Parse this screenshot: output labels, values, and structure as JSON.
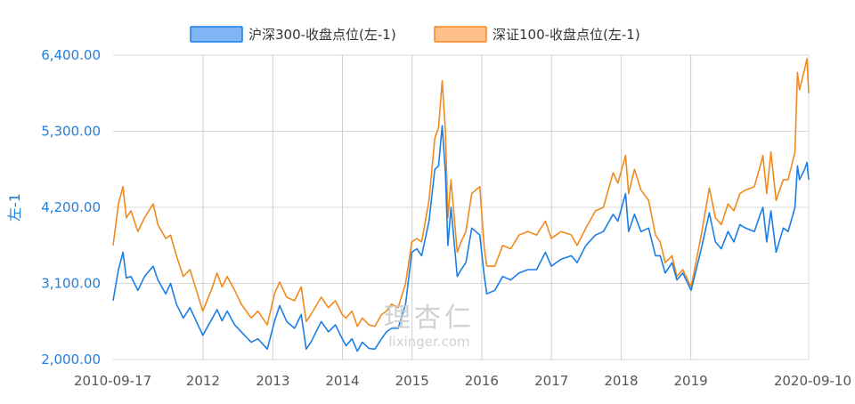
{
  "chart_data": {
    "type": "line",
    "ylabel": "左-1",
    "ylim": [
      2000,
      6400
    ],
    "yticks": [
      {
        "value": 2000,
        "label": "2,000.00"
      },
      {
        "value": 3100,
        "label": "3,100.00"
      },
      {
        "value": 4200,
        "label": "4,200.00"
      },
      {
        "value": 5300,
        "label": "5,300.00"
      },
      {
        "value": 6400,
        "label": "6,400.00"
      }
    ],
    "xlim": [
      "2010-09-17",
      "2020-09-10"
    ],
    "xticks": [
      {
        "date": "2010-09-17",
        "label": "2010-09-17"
      },
      {
        "date": "2012-01-01",
        "label": "2012"
      },
      {
        "date": "2013-01-01",
        "label": "2013"
      },
      {
        "date": "2014-01-01",
        "label": "2014"
      },
      {
        "date": "2015-01-01",
        "label": "2015"
      },
      {
        "date": "2016-01-01",
        "label": "2016"
      },
      {
        "date": "2017-01-01",
        "label": "2017"
      },
      {
        "date": "2018-01-01",
        "label": "2018"
      },
      {
        "date": "2019-01-01",
        "label": "2019"
      },
      {
        "date": "2020-09-10",
        "label": "2020-09-10"
      }
    ],
    "grid": true,
    "legend_position": "top-center",
    "watermark": {
      "cn": "理杏仁",
      "en": "lixinger.com"
    },
    "series": [
      {
        "name": "沪深300-收盘点位(左-1)",
        "color": "#1a7ee6",
        "fill": "#7fb5f5",
        "points": [
          [
            "2010-09-17",
            2850
          ],
          [
            "2010-10-15",
            3300
          ],
          [
            "2010-11-08",
            3550
          ],
          [
            "2010-11-25",
            3180
          ],
          [
            "2010-12-20",
            3200
          ],
          [
            "2011-01-25",
            3000
          ],
          [
            "2011-03-01",
            3200
          ],
          [
            "2011-04-15",
            3350
          ],
          [
            "2011-05-10",
            3150
          ],
          [
            "2011-06-20",
            2950
          ],
          [
            "2011-07-15",
            3100
          ],
          [
            "2011-08-15",
            2800
          ],
          [
            "2011-09-20",
            2600
          ],
          [
            "2011-10-25",
            2750
          ],
          [
            "2011-12-31",
            2350
          ],
          [
            "2012-02-20",
            2600
          ],
          [
            "2012-03-15",
            2720
          ],
          [
            "2012-04-10",
            2560
          ],
          [
            "2012-05-07",
            2700
          ],
          [
            "2012-06-15",
            2500
          ],
          [
            "2012-07-20",
            2400
          ],
          [
            "2012-09-10",
            2250
          ],
          [
            "2012-10-15",
            2300
          ],
          [
            "2012-12-03",
            2150
          ],
          [
            "2013-01-10",
            2550
          ],
          [
            "2013-02-06",
            2780
          ],
          [
            "2013-03-15",
            2550
          ],
          [
            "2013-04-25",
            2450
          ],
          [
            "2013-05-30",
            2650
          ],
          [
            "2013-06-25",
            2150
          ],
          [
            "2013-07-20",
            2250
          ],
          [
            "2013-09-12",
            2550
          ],
          [
            "2013-10-20",
            2400
          ],
          [
            "2013-11-25",
            2500
          ],
          [
            "2013-12-31",
            2300
          ],
          [
            "2014-01-20",
            2200
          ],
          [
            "2014-02-20",
            2300
          ],
          [
            "2014-03-20",
            2120
          ],
          [
            "2014-04-15",
            2250
          ],
          [
            "2014-05-20",
            2160
          ],
          [
            "2014-06-20",
            2150
          ],
          [
            "2014-07-25",
            2300
          ],
          [
            "2014-08-20",
            2400
          ],
          [
            "2014-09-15",
            2450
          ],
          [
            "2014-10-20",
            2450
          ],
          [
            "2014-11-28",
            2800
          ],
          [
            "2014-12-31",
            3550
          ],
          [
            "2015-01-26",
            3600
          ],
          [
            "2015-02-20",
            3500
          ],
          [
            "2015-03-31",
            4000
          ],
          [
            "2015-04-30",
            4750
          ],
          [
            "2015-05-20",
            4800
          ],
          [
            "2015-06-08",
            5380
          ],
          [
            "2015-06-25",
            4700
          ],
          [
            "2015-07-08",
            3650
          ],
          [
            "2015-07-24",
            4200
          ],
          [
            "2015-08-26",
            3200
          ],
          [
            "2015-09-15",
            3300
          ],
          [
            "2015-10-10",
            3400
          ],
          [
            "2015-11-10",
            3900
          ],
          [
            "2015-12-22",
            3800
          ],
          [
            "2016-01-15",
            3200
          ],
          [
            "2016-01-28",
            2950
          ],
          [
            "2016-03-10",
            3000
          ],
          [
            "2016-04-20",
            3200
          ],
          [
            "2016-06-01",
            3150
          ],
          [
            "2016-07-15",
            3250
          ],
          [
            "2016-08-30",
            3300
          ],
          [
            "2016-10-15",
            3300
          ],
          [
            "2016-11-30",
            3550
          ],
          [
            "2016-12-31",
            3350
          ],
          [
            "2017-02-20",
            3450
          ],
          [
            "2017-04-15",
            3500
          ],
          [
            "2017-05-15",
            3400
          ],
          [
            "2017-06-30",
            3650
          ],
          [
            "2017-08-20",
            3800
          ],
          [
            "2017-09-30",
            3850
          ],
          [
            "2017-11-20",
            4100
          ],
          [
            "2017-12-15",
            4000
          ],
          [
            "2018-01-24",
            4400
          ],
          [
            "2018-02-09",
            3850
          ],
          [
            "2018-03-12",
            4100
          ],
          [
            "2018-04-15",
            3850
          ],
          [
            "2018-05-25",
            3900
          ],
          [
            "2018-06-30",
            3500
          ],
          [
            "2018-07-25",
            3500
          ],
          [
            "2018-08-20",
            3250
          ],
          [
            "2018-09-25",
            3400
          ],
          [
            "2018-10-20",
            3150
          ],
          [
            "2018-11-20",
            3250
          ],
          [
            "2019-01-03",
            3000
          ],
          [
            "2019-02-25",
            3600
          ],
          [
            "2019-04-08",
            4120
          ],
          [
            "2019-05-10",
            3700
          ],
          [
            "2019-06-10",
            3600
          ],
          [
            "2019-07-15",
            3850
          ],
          [
            "2019-08-15",
            3700
          ],
          [
            "2019-09-15",
            3950
          ],
          [
            "2019-10-15",
            3900
          ],
          [
            "2019-11-30",
            3850
          ],
          [
            "2019-12-31",
            4100
          ],
          [
            "2020-01-14",
            4200
          ],
          [
            "2020-02-03",
            3700
          ],
          [
            "2020-02-25",
            4150
          ],
          [
            "2020-03-23",
            3550
          ],
          [
            "2020-04-30",
            3900
          ],
          [
            "2020-05-25",
            3850
          ],
          [
            "2020-06-30",
            4200
          ],
          [
            "2020-07-13",
            4800
          ],
          [
            "2020-07-24",
            4600
          ],
          [
            "2020-08-20",
            4750
          ],
          [
            "2020-09-01",
            4850
          ],
          [
            "2020-09-10",
            4600
          ]
        ]
      },
      {
        "name": "深证100-收盘点位(左-1)",
        "color": "#f08a1e",
        "fill": "#ffc08a",
        "points": [
          [
            "2010-09-17",
            3650
          ],
          [
            "2010-10-15",
            4250
          ],
          [
            "2010-11-08",
            4500
          ],
          [
            "2010-11-25",
            4050
          ],
          [
            "2010-12-20",
            4150
          ],
          [
            "2011-01-25",
            3850
          ],
          [
            "2011-03-01",
            4050
          ],
          [
            "2011-04-15",
            4250
          ],
          [
            "2011-05-10",
            3950
          ],
          [
            "2011-06-20",
            3750
          ],
          [
            "2011-07-15",
            3800
          ],
          [
            "2011-08-15",
            3500
          ],
          [
            "2011-09-20",
            3200
          ],
          [
            "2011-10-25",
            3300
          ],
          [
            "2011-12-31",
            2700
          ],
          [
            "2012-02-20",
            3050
          ],
          [
            "2012-03-15",
            3250
          ],
          [
            "2012-04-10",
            3050
          ],
          [
            "2012-05-07",
            3200
          ],
          [
            "2012-06-15",
            3000
          ],
          [
            "2012-07-20",
            2800
          ],
          [
            "2012-09-10",
            2600
          ],
          [
            "2012-10-15",
            2700
          ],
          [
            "2012-12-03",
            2500
          ],
          [
            "2013-01-10",
            2950
          ],
          [
            "2013-02-06",
            3120
          ],
          [
            "2013-03-15",
            2900
          ],
          [
            "2013-04-25",
            2850
          ],
          [
            "2013-05-30",
            3050
          ],
          [
            "2013-06-25",
            2550
          ],
          [
            "2013-07-20",
            2650
          ],
          [
            "2013-09-12",
            2900
          ],
          [
            "2013-10-20",
            2750
          ],
          [
            "2013-11-25",
            2850
          ],
          [
            "2013-12-31",
            2650
          ],
          [
            "2014-01-20",
            2600
          ],
          [
            "2014-02-20",
            2700
          ],
          [
            "2014-03-20",
            2480
          ],
          [
            "2014-04-15",
            2600
          ],
          [
            "2014-05-20",
            2500
          ],
          [
            "2014-06-20",
            2480
          ],
          [
            "2014-07-25",
            2650
          ],
          [
            "2014-08-20",
            2700
          ],
          [
            "2014-09-15",
            2800
          ],
          [
            "2014-10-20",
            2750
          ],
          [
            "2014-11-28",
            3100
          ],
          [
            "2014-12-31",
            3700
          ],
          [
            "2015-01-26",
            3750
          ],
          [
            "2015-02-20",
            3700
          ],
          [
            "2015-03-31",
            4300
          ],
          [
            "2015-04-30",
            5200
          ],
          [
            "2015-05-20",
            5350
          ],
          [
            "2015-06-08",
            6030
          ],
          [
            "2015-06-25",
            5300
          ],
          [
            "2015-07-08",
            4050
          ],
          [
            "2015-07-24",
            4600
          ],
          [
            "2015-08-26",
            3550
          ],
          [
            "2015-09-15",
            3700
          ],
          [
            "2015-10-10",
            3850
          ],
          [
            "2015-11-10",
            4400
          ],
          [
            "2015-12-22",
            4500
          ],
          [
            "2016-01-15",
            3600
          ],
          [
            "2016-01-28",
            3350
          ],
          [
            "2016-03-10",
            3350
          ],
          [
            "2016-04-20",
            3650
          ],
          [
            "2016-06-01",
            3600
          ],
          [
            "2016-07-15",
            3800
          ],
          [
            "2016-08-30",
            3850
          ],
          [
            "2016-10-15",
            3800
          ],
          [
            "2016-11-30",
            4000
          ],
          [
            "2016-12-31",
            3750
          ],
          [
            "2017-02-20",
            3850
          ],
          [
            "2017-04-15",
            3800
          ],
          [
            "2017-05-15",
            3650
          ],
          [
            "2017-06-30",
            3900
          ],
          [
            "2017-08-20",
            4150
          ],
          [
            "2017-09-30",
            4200
          ],
          [
            "2017-11-20",
            4700
          ],
          [
            "2017-12-15",
            4550
          ],
          [
            "2018-01-24",
            4950
          ],
          [
            "2018-02-09",
            4400
          ],
          [
            "2018-03-12",
            4750
          ],
          [
            "2018-04-15",
            4450
          ],
          [
            "2018-05-25",
            4300
          ],
          [
            "2018-06-30",
            3800
          ],
          [
            "2018-07-25",
            3700
          ],
          [
            "2018-08-20",
            3400
          ],
          [
            "2018-09-25",
            3500
          ],
          [
            "2018-10-20",
            3200
          ],
          [
            "2018-11-20",
            3300
          ],
          [
            "2019-01-03",
            3050
          ],
          [
            "2019-02-25",
            3800
          ],
          [
            "2019-04-08",
            4480
          ],
          [
            "2019-05-10",
            4050
          ],
          [
            "2019-06-10",
            3950
          ],
          [
            "2019-07-15",
            4250
          ],
          [
            "2019-08-15",
            4150
          ],
          [
            "2019-09-15",
            4400
          ],
          [
            "2019-10-15",
            4450
          ],
          [
            "2019-11-30",
            4500
          ],
          [
            "2019-12-31",
            4800
          ],
          [
            "2020-01-14",
            4950
          ],
          [
            "2020-02-03",
            4400
          ],
          [
            "2020-02-25",
            5000
          ],
          [
            "2020-03-23",
            4300
          ],
          [
            "2020-04-30",
            4600
          ],
          [
            "2020-05-25",
            4600
          ],
          [
            "2020-06-30",
            5000
          ],
          [
            "2020-07-13",
            6150
          ],
          [
            "2020-07-24",
            5900
          ],
          [
            "2020-08-20",
            6200
          ],
          [
            "2020-09-01",
            6350
          ],
          [
            "2020-09-10",
            5850
          ]
        ]
      }
    ]
  }
}
